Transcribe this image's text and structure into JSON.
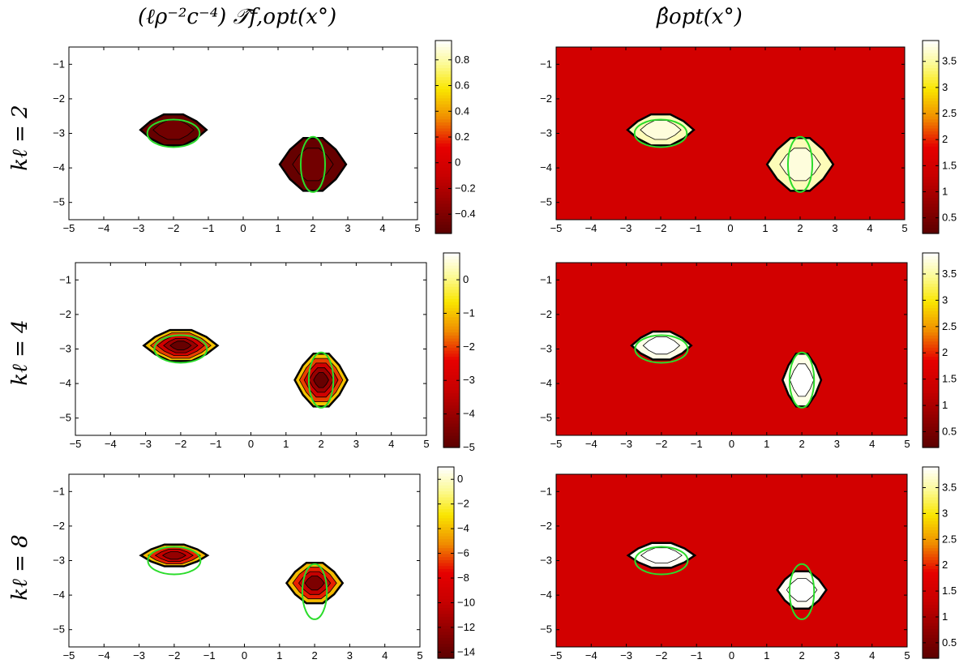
{
  "column_titles": [
    "(ℓρ⁻²c⁻⁴) 𝒯̂f,opt(x°)",
    "β̂opt(x°)"
  ],
  "row_labels": [
    "kℓ = 2",
    "kℓ = 4",
    "kℓ = 8"
  ],
  "chart_data": [
    {
      "type": "heatmap",
      "panel": "T-kl2",
      "xlim": [
        -5,
        5
      ],
      "ylim": [
        -5.5,
        -0.5
      ],
      "xticks": [
        "-5",
        "-4",
        "-3",
        "-2",
        "-1",
        "0",
        "1",
        "2",
        "3",
        "4",
        "5"
      ],
      "yticks": [
        "-1",
        "-2",
        "-3",
        "-4",
        "-5"
      ],
      "colorbar": {
        "range": [
          -0.55,
          0.95
        ],
        "ticks": [
          "0.8",
          "0.6",
          "0.4",
          "0.2",
          "0",
          "-0.2",
          "-0.4"
        ]
      },
      "background_value": "0.95",
      "blobs": [
        {
          "cx": -2,
          "cy": -2.9,
          "rx": 0.95,
          "ry": 0.5,
          "levels": [
            -0.5,
            -0.45
          ]
        },
        {
          "cx": 2,
          "cy": -3.9,
          "rx": 0.95,
          "ry": 0.85,
          "levels": [
            -0.5,
            -0.45
          ]
        }
      ],
      "ellipses": [
        {
          "cx": -2,
          "cy": -3.0,
          "rx": 0.75,
          "ry": 0.4
        },
        {
          "cx": 2,
          "cy": -3.9,
          "rx": 0.35,
          "ry": 0.8
        }
      ]
    },
    {
      "type": "heatmap",
      "panel": "beta-kl2",
      "xlim": [
        -5,
        5
      ],
      "ylim": [
        -5.5,
        -0.5
      ],
      "xticks": [
        "-5",
        "-4",
        "-3",
        "-2",
        "-1",
        "0",
        "1",
        "2",
        "3",
        "4",
        "5"
      ],
      "yticks": [
        "-1",
        "-2",
        "-3",
        "-4",
        "-5"
      ],
      "colorbar": {
        "range": [
          0.2,
          3.9
        ],
        "ticks": [
          "3.5",
          "3",
          "2.5",
          "2",
          "1.5",
          "1",
          "0.5"
        ]
      },
      "background_value": "1.5",
      "blobs": [
        {
          "cx": -2,
          "cy": -2.9,
          "rx": 0.95,
          "ry": 0.5,
          "levels": [
            3.6,
            3.75
          ]
        },
        {
          "cx": 2,
          "cy": -3.9,
          "rx": 0.95,
          "ry": 0.85,
          "levels": [
            3.6,
            3.75
          ]
        }
      ],
      "ellipses": [
        {
          "cx": -2,
          "cy": -3.0,
          "rx": 0.75,
          "ry": 0.4
        },
        {
          "cx": 2,
          "cy": -3.9,
          "rx": 0.35,
          "ry": 0.8
        }
      ]
    },
    {
      "type": "heatmap",
      "panel": "T-kl4",
      "xlim": [
        -5,
        5
      ],
      "ylim": [
        -5.5,
        -0.5
      ],
      "xticks": [
        "-5",
        "-4",
        "-3",
        "-2",
        "-1",
        "0",
        "1",
        "2",
        "3",
        "4",
        "5"
      ],
      "yticks": [
        "-1",
        "-2",
        "-3",
        "-4",
        "-5"
      ],
      "colorbar": {
        "range": [
          -5,
          0.8
        ],
        "ticks": [
          "0",
          "-1",
          "-2",
          "-3",
          "-4",
          "-5"
        ]
      },
      "background_value": "0.8",
      "blobs": [
        {
          "cx": -2,
          "cy": -2.9,
          "rx": 1.05,
          "ry": 0.5,
          "levels": [
            -1,
            -2,
            -3,
            -4,
            -4.8
          ]
        },
        {
          "cx": 2,
          "cy": -3.9,
          "rx": 0.75,
          "ry": 0.85,
          "levels": [
            -1,
            -2,
            -3,
            -4,
            -4.8
          ]
        }
      ],
      "ellipses": [
        {
          "cx": -2,
          "cy": -3.0,
          "rx": 0.75,
          "ry": 0.4
        },
        {
          "cx": 2,
          "cy": -3.9,
          "rx": 0.35,
          "ry": 0.8
        }
      ]
    },
    {
      "type": "heatmap",
      "panel": "beta-kl4",
      "xlim": [
        -5,
        5
      ],
      "ylim": [
        -5.5,
        -0.5
      ],
      "xticks": [
        "-5",
        "-4",
        "-3",
        "-2",
        "-1",
        "0",
        "1",
        "2",
        "3",
        "4",
        "5"
      ],
      "yticks": [
        "-1",
        "-2",
        "-3",
        "-4",
        "-5"
      ],
      "colorbar": {
        "range": [
          0.2,
          3.9
        ],
        "ticks": [
          "3.5",
          "3",
          "2.5",
          "2",
          "1.5",
          "1",
          "0.5"
        ]
      },
      "background_value": "1.5",
      "blobs": [
        {
          "cx": -2,
          "cy": -2.9,
          "rx": 0.85,
          "ry": 0.45,
          "levels": [
            3.8,
            3.9
          ]
        },
        {
          "cx": 2,
          "cy": -3.9,
          "rx": 0.55,
          "ry": 0.85,
          "levels": [
            3.8,
            3.9
          ]
        }
      ],
      "ellipses": [
        {
          "cx": -2,
          "cy": -3.0,
          "rx": 0.75,
          "ry": 0.4
        },
        {
          "cx": 2,
          "cy": -3.9,
          "rx": 0.35,
          "ry": 0.8
        }
      ]
    },
    {
      "type": "heatmap",
      "panel": "T-kl8",
      "xlim": [
        -5,
        5
      ],
      "ylim": [
        -5.5,
        -0.5
      ],
      "xticks": [
        "-5",
        "-4",
        "-3",
        "-2",
        "-1",
        "0",
        "1",
        "2",
        "3",
        "4",
        "5"
      ],
      "yticks": [
        "-1",
        "-2",
        "-3",
        "-4",
        "-5"
      ],
      "colorbar": {
        "range": [
          -14.5,
          1
        ],
        "ticks": [
          "0",
          "-2",
          "-4",
          "-6",
          "-8",
          "-10",
          "-12",
          "-14"
        ]
      },
      "background_value": "1",
      "blobs": [
        {
          "cx": -2,
          "cy": -2.85,
          "rx": 0.95,
          "ry": 0.35,
          "levels": [
            -4,
            -7,
            -10,
            -12
          ]
        },
        {
          "cx": 2,
          "cy": -3.65,
          "rx": 0.8,
          "ry": 0.65,
          "levels": [
            -4,
            -7,
            -10,
            -13
          ]
        }
      ],
      "ellipses": [
        {
          "cx": -2,
          "cy": -3.0,
          "rx": 0.75,
          "ry": 0.4
        },
        {
          "cx": 2,
          "cy": -3.9,
          "rx": 0.35,
          "ry": 0.8
        }
      ]
    },
    {
      "type": "heatmap",
      "panel": "beta-kl8",
      "xlim": [
        -5,
        5
      ],
      "ylim": [
        -5.5,
        -0.5
      ],
      "xticks": [
        "-5",
        "-4",
        "-3",
        "-2",
        "-1",
        "0",
        "1",
        "2",
        "3",
        "4",
        "5"
      ],
      "yticks": [
        "-1",
        "-2",
        "-3",
        "-4",
        "-5"
      ],
      "colorbar": {
        "range": [
          0.2,
          3.9
        ],
        "ticks": [
          "3.5",
          "3",
          "2.5",
          "2",
          "1.5",
          "1",
          "0.5"
        ]
      },
      "background_value": "1.5",
      "blobs": [
        {
          "cx": -2,
          "cy": -2.85,
          "rx": 0.95,
          "ry": 0.4,
          "levels": [
            3.85,
            3.9
          ]
        },
        {
          "cx": 2,
          "cy": -3.85,
          "rx": 0.7,
          "ry": 0.6,
          "levels": [
            3.85,
            3.9
          ]
        }
      ],
      "ellipses": [
        {
          "cx": -2,
          "cy": -3.0,
          "rx": 0.75,
          "ry": 0.4
        },
        {
          "cx": 2,
          "cy": -3.9,
          "rx": 0.35,
          "ry": 0.8
        }
      ]
    }
  ]
}
